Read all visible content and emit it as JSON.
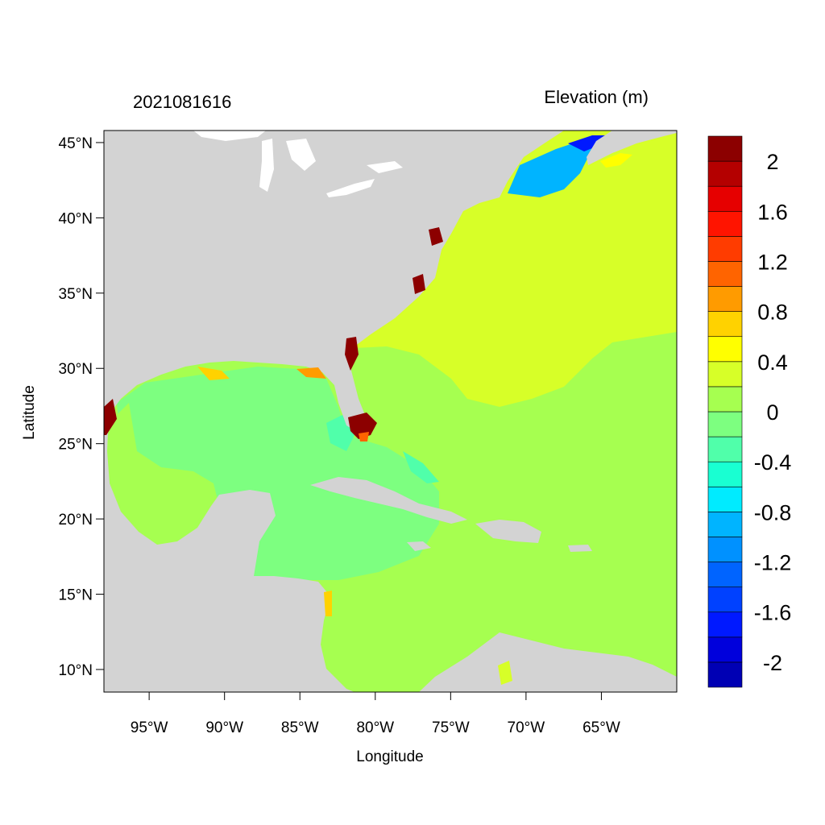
{
  "left_title": "2021081616",
  "right_title": "Elevation (m)",
  "x_axis_label": "Longitude",
  "y_axis_label": "Latitude",
  "lon_ticks": [
    {
      "value": -95,
      "label": "95°W"
    },
    {
      "value": -90,
      "label": "90°W"
    },
    {
      "value": -85,
      "label": "85°W"
    },
    {
      "value": -80,
      "label": "80°W"
    },
    {
      "value": -75,
      "label": "75°W"
    },
    {
      "value": -70,
      "label": "70°W"
    },
    {
      "value": -65,
      "label": "65°W"
    }
  ],
  "lat_ticks": [
    {
      "value": 45,
      "label": "45°N"
    },
    {
      "value": 40,
      "label": "40°N"
    },
    {
      "value": 35,
      "label": "35°N"
    },
    {
      "value": 30,
      "label": "30°N"
    },
    {
      "value": 25,
      "label": "25°N"
    },
    {
      "value": 20,
      "label": "20°N"
    },
    {
      "value": 15,
      "label": "15°N"
    },
    {
      "value": 10,
      "label": "10°N"
    }
  ],
  "extent": {
    "lon_min": -98,
    "lon_max": -60,
    "lat_min": 8.5,
    "lat_max": 45.8
  },
  "colorbar": {
    "levels": [
      -2.2,
      -2.0,
      -1.8,
      -1.6,
      -1.4,
      -1.2,
      -1.0,
      -0.8,
      -0.6,
      -0.4,
      -0.2,
      0.0,
      0.2,
      0.4,
      0.6,
      0.8,
      1.0,
      1.2,
      1.4,
      1.6,
      1.8,
      2.0,
      2.2
    ],
    "colors": [
      "#0000b4",
      "#0000dc",
      "#0019ff",
      "#0041ff",
      "#0064ff",
      "#0091ff",
      "#00b4ff",
      "#00ebff",
      "#19ffd2",
      "#50ffaa",
      "#7dff80",
      "#a6ff50",
      "#d7ff28",
      "#ffff00",
      "#ffd200",
      "#ff9b00",
      "#ff6400",
      "#ff3c00",
      "#ff1400",
      "#e60000",
      "#b40000",
      "#8c0000"
    ],
    "labels": [
      {
        "value": 2.0,
        "label": "2"
      },
      {
        "value": 1.6,
        "label": "1.6"
      },
      {
        "value": 1.2,
        "label": "1.2"
      },
      {
        "value": 0.8,
        "label": "0.8"
      },
      {
        "value": 0.4,
        "label": "0.4"
      },
      {
        "value": 0.0,
        "label": "0"
      },
      {
        "value": -0.4,
        "label": "-0.4"
      },
      {
        "value": -0.8,
        "label": "-0.8"
      },
      {
        "value": -1.2,
        "label": "-1.2"
      },
      {
        "value": -1.6,
        "label": "-1.6"
      },
      {
        "value": -2.0,
        "label": "-2"
      }
    ]
  },
  "colors": {
    "land": "#d3d3d3",
    "ocean_base": "#a6ff50",
    "atlantic_north": "#d7ff28",
    "gulf": "#7dff80",
    "gulf_shelf": "#a6ff50",
    "maine_low": "#00b4ff",
    "surge_high": "#8c0000"
  }
}
